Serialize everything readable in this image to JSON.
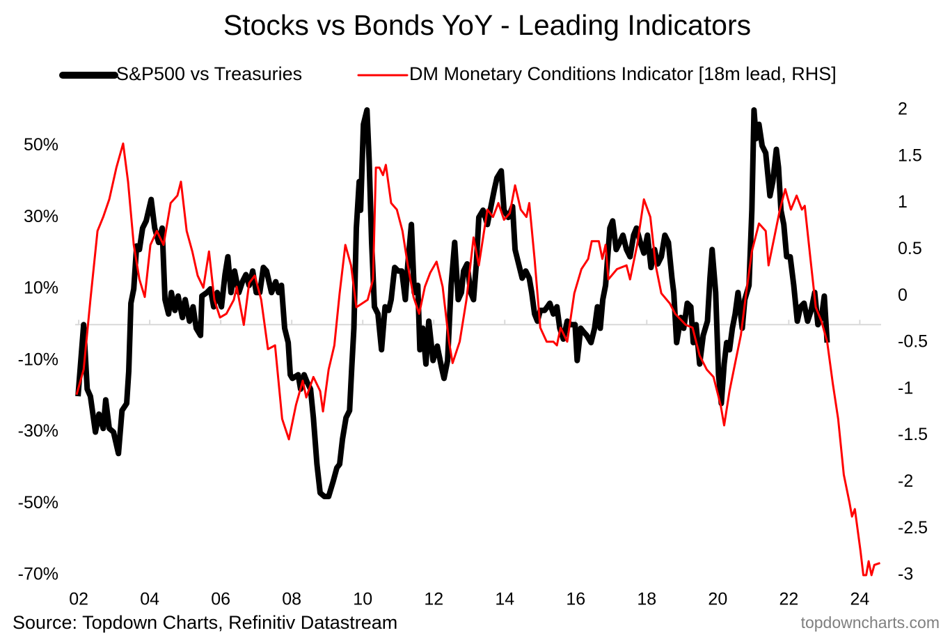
{
  "chart_data": {
    "type": "line",
    "title": "Stocks vs Bonds YoY - Leading Indicators",
    "source": "Source: Topdown Charts, Refinitiv Datastream",
    "watermark": "topdowncharts.com",
    "legend": "top",
    "grid": false,
    "xlim": [
      1.9,
      24.6
    ],
    "xticks": [
      {
        "value": 2,
        "label": "02"
      },
      {
        "value": 4,
        "label": "04"
      },
      {
        "value": 6,
        "label": "06"
      },
      {
        "value": 8,
        "label": "08"
      },
      {
        "value": 10,
        "label": "10"
      },
      {
        "value": 12,
        "label": "12"
      },
      {
        "value": 14,
        "label": "14"
      },
      {
        "value": 16,
        "label": "16"
      },
      {
        "value": 18,
        "label": "18"
      },
      {
        "value": 20,
        "label": "20"
      },
      {
        "value": 22,
        "label": "22"
      },
      {
        "value": 24,
        "label": "24"
      }
    ],
    "ylim": [
      -70,
      60
    ],
    "yticks": [
      {
        "value": -70,
        "label": "-70%"
      },
      {
        "value": -50,
        "label": "-50%"
      },
      {
        "value": -30,
        "label": "-30%"
      },
      {
        "value": -10,
        "label": "-10%"
      },
      {
        "value": 10,
        "label": "10%"
      },
      {
        "value": 30,
        "label": "30%"
      },
      {
        "value": 50,
        "label": "50%"
      }
    ],
    "y2lim": [
      -3,
      2
    ],
    "y2ticks": [
      -3,
      -2.5,
      -2,
      -1.5,
      -1,
      -0.5,
      0,
      0.5,
      1,
      1.5,
      2
    ],
    "series": [
      {
        "name": "S&P500 vs Treasuries",
        "color": "#000000",
        "x": [
          1.98,
          2.14,
          2.24,
          2.33,
          2.47,
          2.57,
          2.69,
          2.76,
          2.86,
          2.98,
          3.12,
          3.22,
          3.35,
          3.41,
          3.47,
          3.55,
          3.63,
          3.71,
          3.8,
          3.9,
          4.04,
          4.14,
          4.25,
          4.35,
          4.43,
          4.53,
          4.61,
          4.71,
          4.8,
          4.92,
          5.0,
          5.12,
          5.22,
          5.31,
          5.43,
          5.47,
          5.61,
          5.71,
          5.8,
          5.9,
          6.02,
          6.12,
          6.2,
          6.29,
          6.39,
          6.51,
          6.61,
          6.71,
          6.8,
          6.9,
          7.0,
          7.1,
          7.2,
          7.29,
          7.43,
          7.55,
          7.63,
          7.71,
          7.8,
          7.9,
          7.96,
          8.02,
          8.18,
          8.25,
          8.35,
          8.43,
          8.53,
          8.61,
          8.71,
          8.8,
          8.92,
          9.04,
          9.16,
          9.27,
          9.35,
          9.43,
          9.53,
          9.63,
          9.69,
          9.75,
          9.82,
          9.9,
          9.94,
          10.02,
          10.12,
          10.18,
          10.25,
          10.33,
          10.43,
          10.53,
          10.63,
          10.73,
          10.8,
          10.9,
          11.0,
          11.1,
          11.2,
          11.27,
          11.37,
          11.45,
          11.55,
          11.61,
          11.69,
          11.78,
          11.86,
          11.98,
          12.1,
          12.22,
          12.29,
          12.39,
          12.49,
          12.59,
          12.69,
          12.78,
          12.84,
          12.94,
          13.04,
          13.12,
          13.2,
          13.27,
          13.39,
          13.51,
          13.61,
          13.71,
          13.78,
          13.9,
          13.98,
          14.1,
          14.22,
          14.29,
          14.39,
          14.49,
          14.59,
          14.69,
          14.76,
          14.84,
          14.92,
          15.0,
          15.12,
          15.2,
          15.27,
          15.37,
          15.47,
          15.55,
          15.65,
          15.76,
          15.86,
          15.98,
          16.04,
          16.14,
          16.22,
          16.31,
          16.43,
          16.53,
          16.61,
          16.69,
          16.76,
          16.84,
          16.96,
          17.04,
          17.14,
          17.24,
          17.33,
          17.43,
          17.53,
          17.63,
          17.71,
          17.82,
          17.92,
          18.02,
          18.12,
          18.22,
          18.31,
          18.41,
          18.51,
          18.61,
          18.71,
          18.76,
          18.84,
          18.96,
          19.04,
          19.14,
          19.24,
          19.31,
          19.39,
          19.49,
          19.59,
          19.71,
          19.78,
          19.84,
          19.94,
          20.02,
          20.1,
          20.18,
          20.25,
          20.33,
          20.41,
          20.49,
          20.57,
          20.69,
          20.76,
          20.88,
          20.96,
          21.02,
          21.08,
          21.16,
          21.25,
          21.35,
          21.47,
          21.55,
          21.65,
          21.71,
          21.78,
          21.86,
          21.94,
          22.04,
          22.14,
          22.24,
          22.33,
          22.43,
          22.53,
          22.63,
          22.73,
          22.82,
          22.92,
          23.0,
          23.08
        ],
        "values": [
          -20,
          0,
          -18,
          -20,
          -30,
          -25,
          -29,
          -21,
          -29,
          -30,
          -36,
          -24,
          -22,
          -13,
          6,
          10,
          22,
          21,
          27,
          29,
          35,
          27,
          23,
          27,
          7,
          3,
          9,
          4,
          8,
          2,
          7,
          1,
          5,
          -1,
          -3,
          8,
          9,
          10,
          5,
          9,
          5,
          14,
          19,
          9,
          15,
          9,
          12,
          14,
          11,
          15,
          9,
          9,
          16,
          15,
          9,
          12,
          9,
          11,
          -1,
          -5,
          -14,
          -15,
          -14,
          -18,
          -14,
          -16,
          -18,
          -26,
          -39,
          -47,
          -48,
          -48,
          -44,
          -40,
          -39,
          -32,
          -26,
          -24,
          -12,
          -1,
          27,
          40,
          32,
          56,
          60,
          46,
          23,
          5,
          3,
          -7,
          5,
          4,
          7,
          16,
          15,
          15,
          7,
          17,
          28,
          9,
          11,
          -7,
          -1,
          -11,
          1,
          -10,
          -6,
          -12,
          -15,
          -10,
          11,
          23,
          7,
          9,
          15,
          17,
          9,
          7,
          17,
          30,
          32,
          28,
          33,
          38,
          41,
          43,
          32,
          30,
          33,
          21,
          17,
          13,
          15,
          13,
          9,
          3,
          1,
          4,
          4,
          5,
          6,
          3,
          5,
          -1,
          -4,
          1,
          0,
          0,
          -10,
          -1,
          -2,
          -3,
          -5,
          -1,
          5,
          -1,
          7,
          11,
          27,
          29,
          21,
          23,
          25,
          21,
          19,
          25,
          27,
          23,
          20,
          25,
          16,
          21,
          17,
          19,
          25,
          23,
          13,
          9,
          -5,
          2,
          -1,
          6,
          5,
          -5,
          0,
          -11,
          -3,
          1,
          13,
          21,
          9,
          -14,
          -22,
          -11,
          -5,
          -7,
          -1,
          3,
          9,
          -1,
          7,
          11,
          32,
          60,
          52,
          56,
          50,
          48,
          36,
          40,
          49,
          44,
          32,
          28,
          19,
          19,
          11,
          1,
          5,
          6,
          1,
          4,
          9,
          0,
          2,
          8,
          -5
        ]
      },
      {
        "name": "DM Monetary Conditions Indicator [18m lead, RHS]",
        "color": "#ff0000",
        "axis": "y2",
        "x": [
          1.94,
          2.14,
          2.33,
          2.53,
          2.69,
          2.86,
          3.06,
          3.25,
          3.39,
          3.55,
          3.71,
          3.86,
          4.02,
          4.2,
          4.39,
          4.59,
          4.78,
          4.88,
          5.04,
          5.2,
          5.35,
          5.51,
          5.67,
          5.82,
          5.98,
          6.16,
          6.37,
          6.45,
          6.65,
          6.8,
          6.96,
          7.14,
          7.33,
          7.53,
          7.73,
          7.92,
          8.12,
          8.31,
          8.41,
          8.61,
          8.8,
          8.88,
          9.04,
          9.2,
          9.35,
          9.51,
          9.67,
          9.82,
          9.98,
          10.14,
          10.29,
          10.37,
          10.47,
          10.57,
          10.65,
          10.8,
          10.96,
          11.12,
          11.27,
          11.43,
          11.59,
          11.75,
          11.9,
          12.08,
          12.25,
          12.43,
          12.53,
          12.73,
          12.92,
          13.12,
          13.27,
          13.51,
          13.67,
          13.82,
          13.98,
          14.14,
          14.29,
          14.45,
          14.61,
          14.69,
          14.84,
          15.0,
          15.18,
          15.37,
          15.47,
          15.57,
          15.76,
          15.96,
          16.16,
          16.35,
          16.45,
          16.65,
          16.75,
          16.84,
          16.92,
          17.16,
          17.43,
          17.53,
          17.73,
          17.92,
          18.1,
          18.25,
          18.41,
          18.65,
          18.8,
          19.1,
          19.29,
          19.49,
          19.69,
          19.88,
          20.08,
          20.18,
          20.33,
          20.49,
          20.65,
          20.8,
          20.96,
          21.16,
          21.35,
          21.43,
          21.59,
          21.75,
          21.9,
          22.06,
          22.22,
          22.37,
          22.45,
          22.61,
          22.76,
          22.92,
          23.08,
          23.24,
          23.39,
          23.55,
          23.71,
          23.78,
          23.86,
          24.02,
          24.1,
          24.18,
          24.25,
          24.33,
          24.41,
          24.57
        ],
        "values": [
          -1.06,
          -0.79,
          -0.04,
          0.7,
          0.85,
          1.04,
          1.38,
          1.64,
          1.23,
          0.55,
          0.18,
          -0.01,
          0.55,
          0.7,
          0.55,
          1.0,
          1.08,
          1.23,
          0.7,
          0.48,
          0.22,
          0.09,
          0.48,
          -0.04,
          -0.23,
          -0.19,
          -0.04,
          0.1,
          -0.31,
          0.14,
          0.22,
          -0.04,
          -0.57,
          -0.53,
          -1.32,
          -1.54,
          -1.17,
          -0.91,
          -1.09,
          -0.87,
          -1.02,
          -1.24,
          -0.79,
          -0.53,
          0.03,
          0.55,
          0.33,
          -0.12,
          -0.08,
          -0.04,
          0.18,
          1.38,
          1.38,
          1.3,
          1.41,
          1.0,
          0.93,
          0.7,
          0.33,
          -0.01,
          -0.19,
          0.1,
          0.25,
          0.37,
          0.1,
          -0.49,
          -0.72,
          -0.49,
          -0.04,
          0.63,
          0.33,
          0.93,
          0.85,
          1.0,
          0.82,
          0.89,
          1.19,
          0.93,
          0.85,
          1.0,
          0.4,
          -0.34,
          -0.49,
          -0.49,
          -0.53,
          -0.34,
          -0.49,
          0.03,
          0.29,
          0.4,
          0.59,
          0.59,
          0.4,
          0.55,
          0.18,
          0.29,
          0.33,
          0.18,
          0.55,
          1.04,
          0.85,
          0.33,
          0.03,
          -0.08,
          -0.19,
          -0.31,
          -0.34,
          -0.64,
          -0.79,
          -0.87,
          -1.17,
          -1.39,
          -1.02,
          -0.72,
          -0.42,
          0.03,
          0.48,
          0.78,
          0.7,
          0.33,
          0.63,
          0.93,
          1.15,
          0.93,
          1.08,
          0.93,
          0.97,
          0.4,
          -0.12,
          -0.27,
          -0.49,
          -0.94,
          -1.32,
          -1.92,
          -2.22,
          -2.37,
          -2.29,
          -2.74,
          -3.0,
          -3.0,
          -2.85,
          -3.0,
          -2.89,
          -2.87
        ]
      }
    ]
  }
}
